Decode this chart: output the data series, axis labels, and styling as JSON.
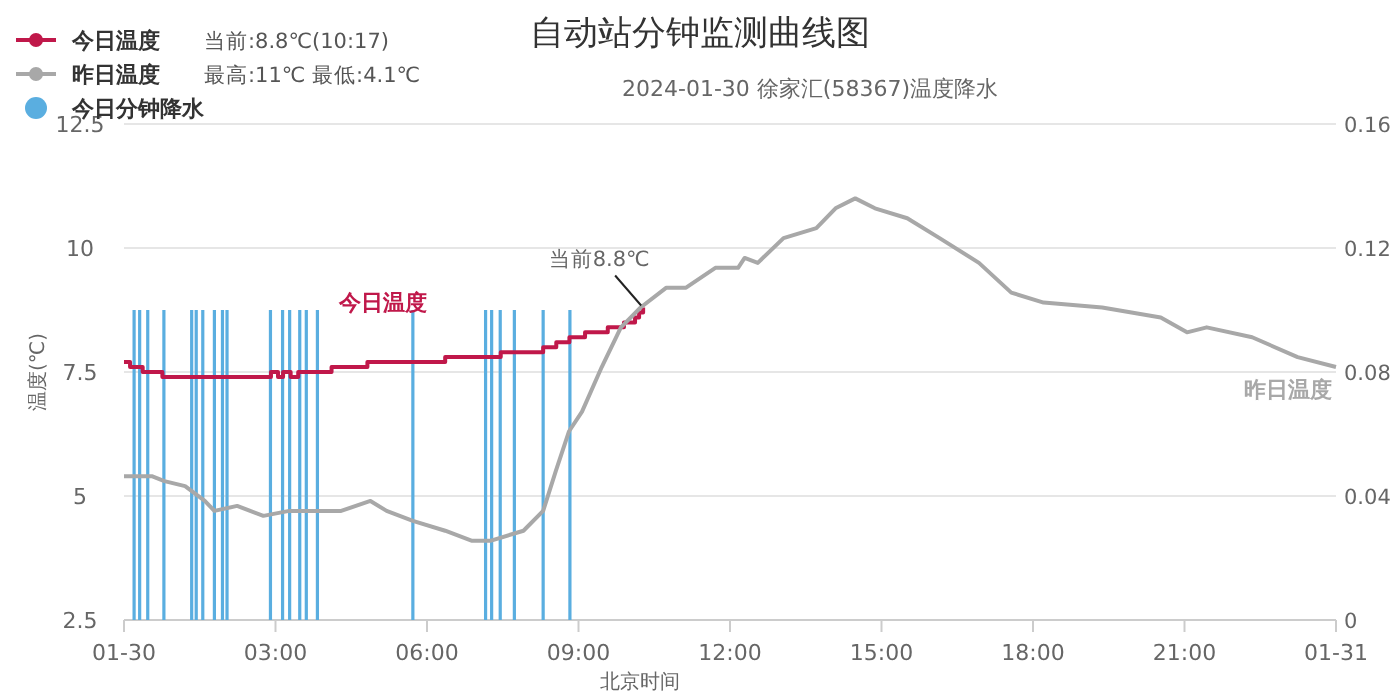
{
  "chart_data": {
    "type": "line",
    "title": "自动站分钟监测曲线图",
    "subtitle": "2024-01-30 徐家汇(58367)温度降水",
    "xlabel": "北京时间",
    "ylabel": "温度(℃)",
    "xlim": [
      0,
      24
    ],
    "xticks": [
      {
        "value": 0,
        "label": "01-30"
      },
      {
        "value": 3,
        "label": "03:00"
      },
      {
        "value": 6,
        "label": "06:00"
      },
      {
        "value": 9,
        "label": "09:00"
      },
      {
        "value": 12,
        "label": "12:00"
      },
      {
        "value": 15,
        "label": "15:00"
      },
      {
        "value": 18,
        "label": "18:00"
      },
      {
        "value": 21,
        "label": "21:00"
      },
      {
        "value": 24,
        "label": "01-31"
      }
    ],
    "ylim": [
      2.5,
      12.5
    ],
    "yticks": [
      2.5,
      5,
      7.5,
      10,
      12.5
    ],
    "y2lim": [
      0,
      0.16
    ],
    "y2ticks": [
      0,
      0.04,
      0.08,
      0.12,
      0.16
    ],
    "grid": "y",
    "legend": "top left",
    "annotations": [
      "当前:8.8℃(10:17)",
      "最高:11℃ 最低:4.1℃",
      {
        "text": "当前8.8℃",
        "x": 10.28,
        "y": 8.8
      }
    ],
    "series": [
      {
        "name": "今日温度",
        "type": "step",
        "color": "#c0184a",
        "x": [
          0,
          0.12,
          0.37,
          0.76,
          2.91,
          3.05,
          3.15,
          3.3,
          3.45,
          3.6,
          4.11,
          4.82,
          6.36,
          7.46,
          8.3,
          8.56,
          8.82,
          9.13,
          9.58,
          9.9,
          10.12,
          10.2,
          10.28
        ],
        "values": [
          7.7,
          7.6,
          7.5,
          7.4,
          7.5,
          7.4,
          7.5,
          7.4,
          7.5,
          7.5,
          7.6,
          7.7,
          7.8,
          7.9,
          8.0,
          8.1,
          8.2,
          8.3,
          8.4,
          8.5,
          8.6,
          8.7,
          8.8
        ]
      },
      {
        "name": "昨日温度",
        "color": "#a8a8a8",
        "x": [
          0,
          0.55,
          0.8,
          1.21,
          1.6,
          1.79,
          2.24,
          2.76,
          3.27,
          3.79,
          4.3,
          4.88,
          5.2,
          5.72,
          6.36,
          6.88,
          7.27,
          7.91,
          8.3,
          8.55,
          8.81,
          9.07,
          9.46,
          9.84,
          10.23,
          10.74,
          11.13,
          11.71,
          12.16,
          12.29,
          12.55,
          13.06,
          13.71,
          14.09,
          14.48,
          14.87,
          15.51,
          16.15,
          16.93,
          17.57,
          18.21,
          19.37,
          19.95,
          20.53,
          21.05,
          21.44,
          22.34,
          23.24,
          24
        ],
        "values": [
          5.4,
          5.4,
          5.3,
          5.2,
          4.9,
          4.7,
          4.8,
          4.6,
          4.7,
          4.7,
          4.7,
          4.9,
          4.7,
          4.5,
          4.3,
          4.1,
          4.1,
          4.3,
          4.7,
          5.5,
          6.3,
          6.7,
          7.6,
          8.4,
          8.8,
          9.2,
          9.2,
          9.6,
          9.6,
          9.8,
          9.7,
          10.2,
          10.4,
          10.8,
          11.0,
          10.8,
          10.6,
          10.2,
          9.7,
          9.1,
          8.9,
          8.8,
          8.7,
          8.6,
          8.3,
          8.4,
          8.2,
          7.8,
          7.6
        ]
      },
      {
        "name": "今日分钟降水",
        "type": "bar",
        "axis": "y2",
        "color": "#5aaee0",
        "x": [
          0.2,
          0.31,
          0.47,
          0.79,
          1.34,
          1.43,
          1.56,
          1.79,
          1.95,
          2.04,
          2.9,
          3.14,
          3.28,
          3.48,
          3.61,
          3.83,
          5.72,
          7.16,
          7.28,
          7.45,
          7.73,
          8.3,
          8.83
        ],
        "values": [
          0.1,
          0.1,
          0.1,
          0.1,
          0.1,
          0.1,
          0.1,
          0.1,
          0.1,
          0.1,
          0.1,
          0.1,
          0.1,
          0.1,
          0.1,
          0.1,
          0.1,
          0.1,
          0.1,
          0.1,
          0.1,
          0.1,
          0.1
        ]
      }
    ]
  }
}
